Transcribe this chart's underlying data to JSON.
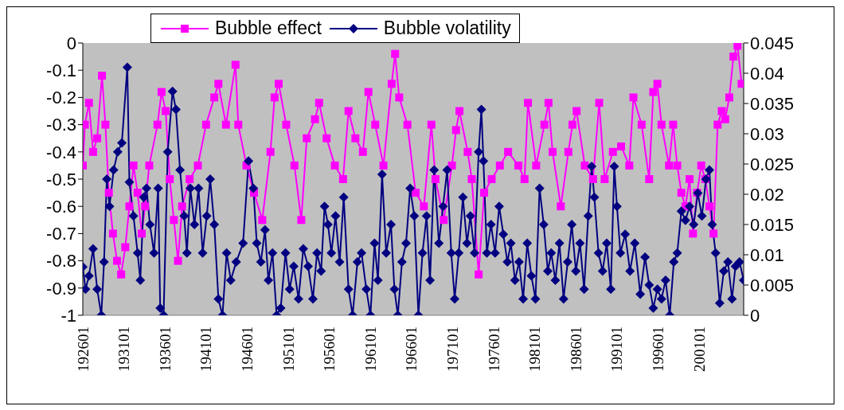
{
  "chart_data": {
    "type": "line",
    "legend": "top",
    "grid": false,
    "xlim": [
      "1926-01",
      "2006-06"
    ],
    "xticks": [
      {
        "value": "1926-01",
        "label": "192601"
      },
      {
        "value": "1931-01",
        "label": "193101"
      },
      {
        "value": "1936-01",
        "label": "193601"
      },
      {
        "value": "1941-01",
        "label": "194101"
      },
      {
        "value": "1946-01",
        "label": "194601"
      },
      {
        "value": "1951-01",
        "label": "195101"
      },
      {
        "value": "1956-01",
        "label": "195601"
      },
      {
        "value": "1961-01",
        "label": "196101"
      },
      {
        "value": "1966-01",
        "label": "196601"
      },
      {
        "value": "1971-01",
        "label": "197101"
      },
      {
        "value": "1976-01",
        "label": "197601"
      },
      {
        "value": "1981-01",
        "label": "198101"
      },
      {
        "value": "1986-01",
        "label": "198601"
      },
      {
        "value": "1991-01",
        "label": "199101"
      },
      {
        "value": "1996-01",
        "label": "199601"
      },
      {
        "value": "2001-01",
        "label": "200101"
      }
    ],
    "ylim": [
      -1,
      0
    ],
    "yticks": [
      -1,
      -0.9,
      -0.8,
      -0.7,
      -0.6,
      -0.5,
      -0.4,
      -0.3,
      -0.2,
      -0.1,
      0
    ],
    "y2lim": [
      0,
      0.045
    ],
    "y2ticks": [
      0,
      0.005,
      0.01,
      0.015,
      0.02,
      0.025,
      0.03,
      0.035,
      0.04,
      0.045
    ],
    "series": [
      {
        "name": "Bubble effect",
        "color": "#ff00ff",
        "marker": "square",
        "x": [
          "1926-01",
          "1926-04",
          "1926-10",
          "1927-04",
          "1927-10",
          "1928-05",
          "1928-10",
          "1929-03",
          "1929-09",
          "1930-03",
          "1930-09",
          "1931-03",
          "1931-09",
          "1932-03",
          "1932-09",
          "1933-03",
          "1933-08",
          "1934-02",
          "1935-02",
          "1935-08",
          "1936-02",
          "1936-08",
          "1937-02",
          "1937-08",
          "1938-02",
          "1939-01",
          "1940-01",
          "1941-01",
          "1942-01",
          "1942-07",
          "1943-06",
          "1944-08",
          "1944-12",
          "1945-12",
          "1946-11",
          "1947-11",
          "1948-11",
          "1949-05",
          "1949-11",
          "1950-10",
          "1951-10",
          "1952-08",
          "1953-04",
          "1954-04",
          "1954-10",
          "1955-09",
          "1956-09",
          "1957-09",
          "1958-05",
          "1959-03",
          "1960-02",
          "1960-10",
          "1961-08",
          "1962-08",
          "1963-08",
          "1964-01",
          "1964-07",
          "1965-07",
          "1966-07",
          "1967-07",
          "1968-06",
          "1968-12",
          "1969-12",
          "1970-12",
          "1971-06",
          "1971-11",
          "1972-11",
          "1973-05",
          "1974-03",
          "1974-11",
          "1975-10",
          "1976-10",
          "1977-10",
          "1979-01",
          "1979-10",
          "1980-03",
          "1981-03",
          "1982-03",
          "1982-09",
          "1983-03",
          "1984-03",
          "1985-02",
          "1985-08",
          "1986-02",
          "1987-02",
          "1988-02",
          "1988-11",
          "1989-07",
          "1990-07",
          "1991-07",
          "1992-07",
          "1993-01",
          "1994-01",
          "1994-12",
          "1995-06",
          "1995-12",
          "1996-06",
          "1997-05",
          "1997-11",
          "1998-05",
          "1998-11",
          "1999-05",
          "1999-11",
          "2000-04",
          "2000-10",
          "2001-04",
          "2001-10",
          "2002-04",
          "2002-10",
          "2003-04",
          "2003-10",
          "2004-03",
          "2004-09",
          "2005-03",
          "2005-09",
          "2006-03"
        ],
        "values": [
          -0.45,
          -0.3,
          -0.22,
          -0.4,
          -0.35,
          -0.12,
          -0.3,
          -0.55,
          -0.7,
          -0.8,
          -0.85,
          -0.75,
          -0.6,
          -0.45,
          -0.55,
          -0.7,
          -0.6,
          -0.45,
          -0.3,
          -0.18,
          -0.25,
          -0.5,
          -0.65,
          -0.8,
          -0.6,
          -0.5,
          -0.45,
          -0.3,
          -0.2,
          -0.15,
          -0.3,
          -0.08,
          -0.3,
          -0.45,
          -0.55,
          -0.65,
          -0.4,
          -0.2,
          -0.15,
          -0.3,
          -0.45,
          -0.65,
          -0.35,
          -0.28,
          -0.22,
          -0.35,
          -0.45,
          -0.5,
          -0.25,
          -0.35,
          -0.4,
          -0.18,
          -0.3,
          -0.45,
          -0.15,
          -0.04,
          -0.2,
          -0.3,
          -0.55,
          -0.6,
          -0.3,
          -0.5,
          -0.65,
          -0.45,
          -0.32,
          -0.25,
          -0.4,
          -0.5,
          -0.85,
          -0.55,
          -0.5,
          -0.45,
          -0.4,
          -0.45,
          -0.5,
          -0.22,
          -0.45,
          -0.3,
          -0.22,
          -0.4,
          -0.6,
          -0.4,
          -0.3,
          -0.25,
          -0.45,
          -0.5,
          -0.22,
          -0.5,
          -0.4,
          -0.38,
          -0.45,
          -0.2,
          -0.3,
          -0.5,
          -0.18,
          -0.15,
          -0.3,
          -0.45,
          -0.3,
          -0.45,
          -0.55,
          -0.6,
          -0.5,
          -0.7,
          -0.55,
          -0.45,
          -0.5,
          -0.6,
          -0.7,
          -0.3,
          -0.25,
          -0.28,
          -0.2,
          -0.05,
          -0.01,
          -0.15
        ]
      },
      {
        "name": "Bubble volatility",
        "color": "#000080",
        "marker": "diamond",
        "axis": "y2",
        "x": [
          "1926-01",
          "1926-05",
          "1926-10",
          "1927-04",
          "1927-10",
          "1928-04",
          "1928-08",
          "1928-12",
          "1929-04",
          "1929-10",
          "1930-04",
          "1930-10",
          "1931-06",
          "1931-09",
          "1932-03",
          "1932-09",
          "1933-01",
          "1933-06",
          "1933-10",
          "1934-03",
          "1934-09",
          "1935-03",
          "1935-06",
          "1935-11",
          "1936-05",
          "1936-12",
          "1937-05",
          "1937-11",
          "1938-05",
          "1938-09",
          "1939-02",
          "1939-08",
          "1940-02",
          "1940-08",
          "1941-02",
          "1941-07",
          "1942-01",
          "1942-07",
          "1943-01",
          "1943-07",
          "1944-01",
          "1944-09",
          "1945-07",
          "1946-03",
          "1946-10",
          "1947-03",
          "1947-09",
          "1948-03",
          "1948-08",
          "1949-02",
          "1949-08",
          "1950-02",
          "1950-09",
          "1951-03",
          "1951-09",
          "1952-04",
          "1952-11",
          "1953-06",
          "1954-01",
          "1954-07",
          "1955-01",
          "1955-06",
          "1955-11",
          "1956-04",
          "1956-10",
          "1957-04",
          "1957-10",
          "1958-05",
          "1958-11",
          "1959-06",
          "1959-12",
          "1960-07",
          "1961-01",
          "1961-07",
          "1961-12",
          "1962-06",
          "1962-12",
          "1963-07",
          "1963-12",
          "1964-05",
          "1964-11",
          "1965-05",
          "1965-11",
          "1966-05",
          "1966-11",
          "1967-05",
          "1967-11",
          "1968-04",
          "1968-10",
          "1969-05",
          "1969-11",
          "1970-05",
          "1970-11",
          "1971-04",
          "1971-10",
          "1972-04",
          "1972-10",
          "1973-03",
          "1973-09",
          "1974-03",
          "1974-07",
          "1974-10",
          "1975-03",
          "1975-09",
          "1976-03",
          "1976-09",
          "1977-03",
          "1977-09",
          "1978-02",
          "1978-08",
          "1979-02",
          "1979-08",
          "1980-02",
          "1980-08",
          "1981-02",
          "1981-08",
          "1982-02",
          "1982-08",
          "1983-01",
          "1983-07",
          "1984-01",
          "1984-07",
          "1985-01",
          "1985-07",
          "1986-01",
          "1986-07",
          "1987-01",
          "1987-07",
          "1987-12",
          "1988-04",
          "1988-10",
          "1989-04",
          "1989-10",
          "1990-04",
          "1990-09",
          "1991-01",
          "1991-06",
          "1992-01",
          "1992-08",
          "1993-03",
          "1993-11",
          "1994-06",
          "1994-12",
          "1995-06",
          "1995-12",
          "1996-06",
          "1996-12",
          "1997-06",
          "1997-12",
          "1998-05",
          "1998-11",
          "1999-05",
          "1999-11",
          "2000-05",
          "2000-11",
          "2001-05",
          "2001-11",
          "2002-04",
          "2002-08",
          "2003-01",
          "2003-07",
          "2004-01",
          "2004-07",
          "2005-01",
          "2005-06",
          "2005-12",
          "2006-06"
        ],
        "values": [
          0.008,
          0.0043,
          0.0065,
          0.011,
          0.0043,
          0,
          0.0088,
          0.0225,
          0.018,
          0.024,
          0.027,
          0.0285,
          0.041,
          0.022,
          0.0164,
          0.0103,
          0.0058,
          0.0195,
          0.021,
          0.015,
          0.0103,
          0.021,
          0.0012,
          0,
          0.027,
          0.037,
          0.034,
          0.024,
          0.0164,
          0.0103,
          0.021,
          0.015,
          0.021,
          0.0103,
          0.0164,
          0.0225,
          0.015,
          0.0027,
          0,
          0.0103,
          0.0058,
          0.0088,
          0.0119,
          0.0255,
          0.021,
          0.0119,
          0.0088,
          0.0141,
          0.0058,
          0.0103,
          0,
          0.0012,
          0.0103,
          0.0043,
          0.0081,
          0.0027,
          0.011,
          0.0081,
          0.0027,
          0.0103,
          0.0073,
          0.018,
          0.015,
          0.0103,
          0.0164,
          0.0088,
          0.0195,
          0.0043,
          0,
          0.0088,
          0.0103,
          0.0043,
          0,
          0.0119,
          0.0058,
          0.0233,
          0.0103,
          0.015,
          0.0043,
          0,
          0.0088,
          0.0119,
          0.021,
          0.0164,
          0,
          0.0103,
          0.0164,
          0.0058,
          0.024,
          0.0119,
          0.018,
          0.024,
          0.0103,
          0.0027,
          0.0103,
          0.0195,
          0.0119,
          0.0164,
          0.0103,
          0.027,
          0.034,
          0.0255,
          0.0103,
          0.015,
          0.0103,
          0.018,
          0.0134,
          0.0088,
          0.0119,
          0.0058,
          0.0088,
          0.0027,
          0.0119,
          0.0065,
          0.0027,
          0.021,
          0.015,
          0.0073,
          0.0103,
          0.0058,
          0.0119,
          0.0027,
          0.0088,
          0.015,
          0.0073,
          0.0119,
          0.0043,
          0.0164,
          0.0246,
          0.0195,
          0.0103,
          0.0073,
          0.0119,
          0.0043,
          0.0246,
          0.018,
          0.0103,
          0.0134,
          0.0073,
          0.0119,
          0.0035,
          0.0096,
          0.005,
          0.0012,
          0.0043,
          0.0027,
          0.0058,
          0,
          0.0088,
          0.0103,
          0.0172,
          0.0157,
          0.018,
          0.015,
          0.0202,
          0.0164,
          0.0225,
          0.024,
          0.015,
          0.0103,
          0.002,
          0.0073,
          0.0088,
          0.0027,
          0.0081,
          0.0088,
          0.0058
        ]
      }
    ]
  }
}
